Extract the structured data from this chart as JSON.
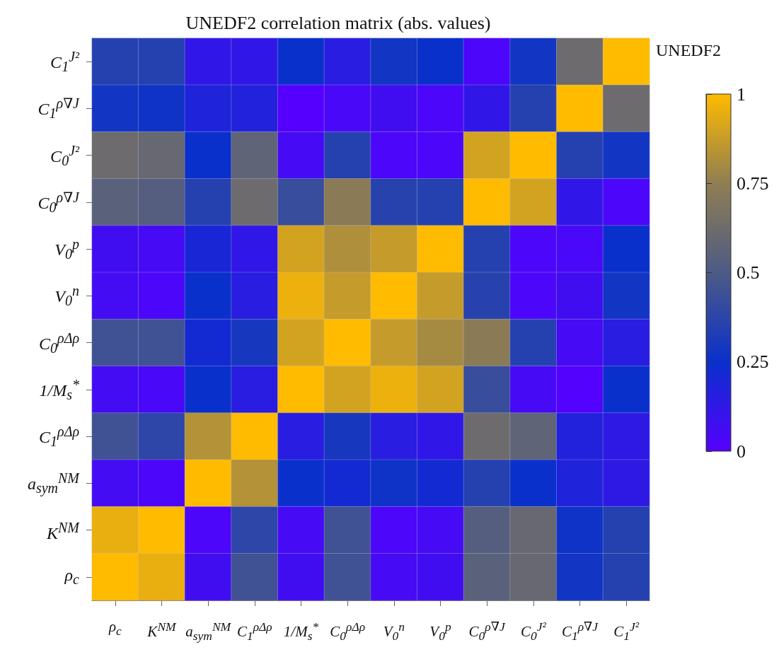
{
  "chart_data": {
    "type": "heatmap",
    "title": "UNEDF2 correlation matrix (abs. values)",
    "clabel": "UNEDF2",
    "categories": [
      "ρ$_{c}$",
      "K$^{NM}$",
      "a$_{sym}$$^{NM}$",
      "C$_{1}$$^{ρΔρ}$",
      "1/M$_{s}$$^{*}$",
      "C$_{0}$$^{ρΔρ}$",
      "V$_{0}$$^{n}$",
      "V$_{0}$$^{p}$",
      "C$_{0}$$^{ρ∇J}$",
      "C$_{0}$$^{J²}$",
      "C$_{1}$$^{ρ∇J}$",
      "C$_{1}$$^{J²}$"
    ],
    "y_categories": [
      "C$_{1}$$^{J²}$",
      "C$_{1}$$^{ρ∇J}$",
      "C$_{0}$$^{J²}$",
      "C$_{0}$$^{ρ∇J}$",
      "V$_{0}$$^{p}$",
      "V$_{0}$$^{n}$",
      "C$_{0}$$^{ρΔρ}$",
      "1/M$_{s}$$^{*}$",
      "C$_{1}$$^{ρΔρ}$",
      "a$_{sym}$$^{NM}$",
      "K$^{NM}$",
      "ρ$_{c}$"
    ],
    "cells": [
      [
        0.35,
        0.35,
        0.12,
        0.12,
        0.25,
        0.15,
        0.28,
        0.25,
        0.03,
        0.28,
        0.62,
        1
      ],
      [
        0.28,
        0.27,
        0.18,
        0.17,
        0,
        0.04,
        0.07,
        0.03,
        0.12,
        0.35,
        1,
        0.62
      ],
      [
        0.62,
        0.6,
        0.25,
        0.57,
        0.05,
        0.35,
        0.03,
        0.03,
        0.9,
        1,
        0.35,
        0.28
      ],
      [
        0.55,
        0.53,
        0.35,
        0.62,
        0.42,
        0.73,
        0.36,
        0.35,
        1,
        0.9,
        0.12,
        0.03
      ],
      [
        0.07,
        0.05,
        0.2,
        0.12,
        0.9,
        0.82,
        0.87,
        1,
        0.35,
        0.03,
        0.04,
        0.25
      ],
      [
        0.06,
        0.03,
        0.25,
        0.15,
        0.96,
        0.87,
        1,
        0.87,
        0.36,
        0.03,
        0.07,
        0.28
      ],
      [
        0.45,
        0.45,
        0.22,
        0.3,
        0.9,
        1,
        0.87,
        0.8,
        0.73,
        0.35,
        0.05,
        0.15
      ],
      [
        0.06,
        0.04,
        0.25,
        0.15,
        1,
        0.9,
        0.96,
        0.9,
        0.42,
        0.05,
        0.01,
        0.25
      ],
      [
        0.45,
        0.38,
        0.83,
        1,
        0.15,
        0.3,
        0.15,
        0.12,
        0.62,
        0.57,
        0.17,
        0.13
      ],
      [
        0.06,
        0.03,
        1,
        0.83,
        0.25,
        0.22,
        0.27,
        0.22,
        0.35,
        0.25,
        0.18,
        0.13
      ],
      [
        0.95,
        1,
        0.03,
        0.38,
        0.05,
        0.45,
        0.03,
        0.05,
        0.53,
        0.6,
        0.27,
        0.35
      ],
      [
        1,
        0.95,
        0.07,
        0.45,
        0.07,
        0.45,
        0.05,
        0.07,
        0.55,
        0.6,
        0.28,
        0.35
      ]
    ],
    "clim": [
      0,
      1
    ],
    "cticks": [
      0,
      0.25,
      0.5,
      0.75,
      1
    ]
  }
}
